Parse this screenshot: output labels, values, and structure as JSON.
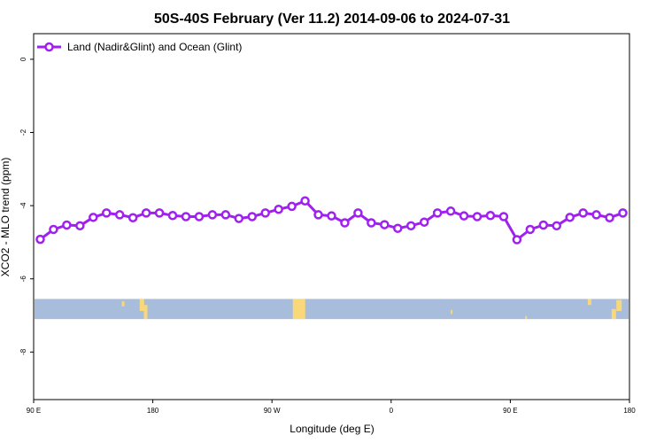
{
  "chart_data": {
    "type": "line",
    "title": "50S-40S February (Ver 11.2)   2014-09-06 to 2024-07-31",
    "xlabel": "Longitude (deg E)",
    "ylabel": "XCO2 - MLO trend (ppm)",
    "xlim": [
      90,
      540
    ],
    "ylim": [
      -9.3,
      0.7
    ],
    "x_ticks": [
      {
        "value": 90,
        "label": "90 E"
      },
      {
        "value": 180,
        "label": "180"
      },
      {
        "value": 270,
        "label": "90 W"
      },
      {
        "value": 360,
        "label": "0"
      },
      {
        "value": 450,
        "label": "90 E"
      },
      {
        "value": 540,
        "label": "180"
      }
    ],
    "y_ticks": [
      {
        "value": 0,
        "label": "0"
      },
      {
        "value": -2,
        "label": "-2"
      },
      {
        "value": -4,
        "label": "-4"
      },
      {
        "value": -6,
        "label": "-6"
      },
      {
        "value": -8,
        "label": "-8"
      }
    ],
    "legend_position": "top-left",
    "grid": false,
    "series": [
      {
        "name": "Land (Nadir&Glint) and Ocean (Glint)",
        "color": "#a020f0",
        "x": [
          95,
          105,
          115,
          125,
          135,
          145,
          155,
          165,
          175,
          185,
          195,
          205,
          215,
          225,
          235,
          245,
          255,
          265,
          275,
          285,
          295,
          305,
          315,
          325,
          335,
          345,
          355,
          365,
          375,
          385,
          395,
          405,
          415,
          425,
          435,
          445,
          455,
          465,
          475,
          485,
          495,
          505,
          515,
          525,
          535
        ],
        "y": [
          -4.92,
          -4.65,
          -4.53,
          -4.55,
          -4.32,
          -4.2,
          -4.25,
          -4.33,
          -4.2,
          -4.2,
          -4.27,
          -4.3,
          -4.3,
          -4.25,
          -4.25,
          -4.35,
          -4.3,
          -4.2,
          -4.1,
          -4.02,
          -3.87,
          -4.25,
          -4.28,
          -4.47,
          -4.2,
          -4.47,
          -4.52,
          -4.62,
          -4.55,
          -4.45,
          -4.2,
          -4.15,
          -4.28,
          -4.3,
          -4.27,
          -4.3,
          -4.93,
          -4.65,
          -4.53,
          -4.55,
          -4.32,
          -4.2,
          -4.25,
          -4.33,
          -4.2
        ]
      }
    ],
    "map_strip": {
      "y_top": -6.55,
      "y_bottom": -7.1,
      "ocean_color": "#a8bcdc",
      "land_color": "#f8d878"
    }
  }
}
